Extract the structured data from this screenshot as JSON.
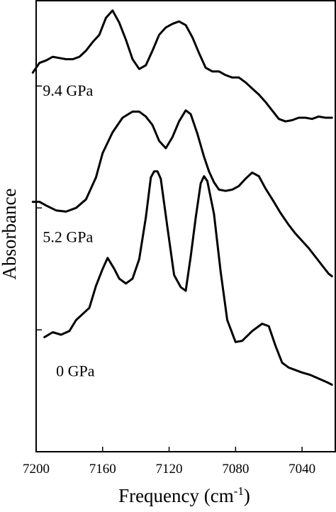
{
  "chart_data": {
    "type": "line",
    "xlabel": "Frequency (cm",
    "xlabel_superscript": "-1",
    "xlabel_suffix": ")",
    "ylabel": "Absorbance",
    "xlim": [
      7200,
      7020
    ],
    "x_reversed": true,
    "ylim": [
      0,
      3.7
    ],
    "x_ticks": [
      7200,
      7160,
      7120,
      7080,
      7040
    ],
    "y_tick_labels_shown": false,
    "y_ticks": [
      1,
      2,
      3
    ],
    "series": [
      {
        "name": "0 GPa",
        "points": [
          [
            7195,
            0.94
          ],
          [
            7190,
            0.98
          ],
          [
            7185,
            0.96
          ],
          [
            7180,
            0.99
          ],
          [
            7176,
            1.08
          ],
          [
            7172,
            1.13
          ],
          [
            7168,
            1.18
          ],
          [
            7164,
            1.36
          ],
          [
            7160,
            1.5
          ],
          [
            7157,
            1.59
          ],
          [
            7153,
            1.5
          ],
          [
            7150,
            1.42
          ],
          [
            7146,
            1.38
          ],
          [
            7142,
            1.42
          ],
          [
            7138,
            1.58
          ],
          [
            7134,
            1.92
          ],
          [
            7131,
            2.25
          ],
          [
            7129,
            2.3
          ],
          [
            7127,
            2.3
          ],
          [
            7125,
            2.24
          ],
          [
            7121,
            1.84
          ],
          [
            7117,
            1.45
          ],
          [
            7113,
            1.35
          ],
          [
            7110,
            1.32
          ],
          [
            7107,
            1.6
          ],
          [
            7104,
            1.92
          ],
          [
            7101,
            2.2
          ],
          [
            7099,
            2.26
          ],
          [
            7097,
            2.22
          ],
          [
            7093,
            1.95
          ],
          [
            7089,
            1.48
          ],
          [
            7085,
            1.08
          ],
          [
            7080,
            0.9
          ],
          [
            7076,
            0.91
          ],
          [
            7070,
            0.99
          ],
          [
            7064,
            1.05
          ],
          [
            7060,
            1.03
          ],
          [
            7056,
            0.87
          ],
          [
            7052,
            0.73
          ],
          [
            7048,
            0.69
          ],
          [
            7044,
            0.67
          ],
          [
            7040,
            0.65
          ],
          [
            7035,
            0.63
          ],
          [
            7030,
            0.6
          ],
          [
            7025,
            0.57
          ],
          [
            7022,
            0.55
          ]
        ]
      },
      {
        "name": "5.2 GPa",
        "points": [
          [
            7202,
            2.05
          ],
          [
            7198,
            2.05
          ],
          [
            7194,
            2.02
          ],
          [
            7188,
            1.98
          ],
          [
            7182,
            1.97
          ],
          [
            7176,
            2.0
          ],
          [
            7170,
            2.07
          ],
          [
            7164,
            2.25
          ],
          [
            7160,
            2.45
          ],
          [
            7154,
            2.62
          ],
          [
            7148,
            2.74
          ],
          [
            7142,
            2.79
          ],
          [
            7138,
            2.79
          ],
          [
            7134,
            2.75
          ],
          [
            7130,
            2.68
          ],
          [
            7126,
            2.55
          ],
          [
            7122,
            2.49
          ],
          [
            7118,
            2.58
          ],
          [
            7114,
            2.71
          ],
          [
            7110,
            2.8
          ],
          [
            7107,
            2.77
          ],
          [
            7103,
            2.61
          ],
          [
            7099,
            2.42
          ],
          [
            7096,
            2.3
          ],
          [
            7093,
            2.21
          ],
          [
            7090,
            2.15
          ],
          [
            7086,
            2.14
          ],
          [
            7082,
            2.15
          ],
          [
            7078,
            2.18
          ],
          [
            7074,
            2.24
          ],
          [
            7070,
            2.29
          ],
          [
            7066,
            2.26
          ],
          [
            7062,
            2.16
          ],
          [
            7057,
            2.05
          ],
          [
            7053,
            1.96
          ],
          [
            7048,
            1.86
          ],
          [
            7044,
            1.79
          ],
          [
            7040,
            1.73
          ],
          [
            7036,
            1.67
          ],
          [
            7032,
            1.6
          ],
          [
            7028,
            1.53
          ],
          [
            7024,
            1.46
          ],
          [
            7022,
            1.44
          ]
        ]
      },
      {
        "name": "9.4 GPa",
        "points": [
          [
            7202,
            3.11
          ],
          [
            7198,
            3.19
          ],
          [
            7194,
            3.21
          ],
          [
            7190,
            3.24
          ],
          [
            7186,
            3.23
          ],
          [
            7182,
            3.22
          ],
          [
            7178,
            3.22
          ],
          [
            7174,
            3.24
          ],
          [
            7170,
            3.29
          ],
          [
            7166,
            3.36
          ],
          [
            7162,
            3.42
          ],
          [
            7158,
            3.56
          ],
          [
            7154,
            3.62
          ],
          [
            7150,
            3.52
          ],
          [
            7146,
            3.38
          ],
          [
            7142,
            3.22
          ],
          [
            7138,
            3.14
          ],
          [
            7134,
            3.17
          ],
          [
            7130,
            3.29
          ],
          [
            7126,
            3.42
          ],
          [
            7122,
            3.48
          ],
          [
            7118,
            3.51
          ],
          [
            7114,
            3.53
          ],
          [
            7110,
            3.5
          ],
          [
            7106,
            3.4
          ],
          [
            7102,
            3.27
          ],
          [
            7098,
            3.15
          ],
          [
            7094,
            3.12
          ],
          [
            7090,
            3.12
          ],
          [
            7086,
            3.09
          ],
          [
            7082,
            3.07
          ],
          [
            7078,
            3.07
          ],
          [
            7074,
            3.03
          ],
          [
            7070,
            2.98
          ],
          [
            7066,
            2.93
          ],
          [
            7062,
            2.87
          ],
          [
            7058,
            2.8
          ],
          [
            7054,
            2.73
          ],
          [
            7050,
            2.71
          ],
          [
            7046,
            2.72
          ],
          [
            7042,
            2.74
          ],
          [
            7038,
            2.74
          ],
          [
            7034,
            2.73
          ],
          [
            7030,
            2.75
          ],
          [
            7026,
            2.74
          ],
          [
            7022,
            2.74
          ]
        ]
      }
    ]
  }
}
